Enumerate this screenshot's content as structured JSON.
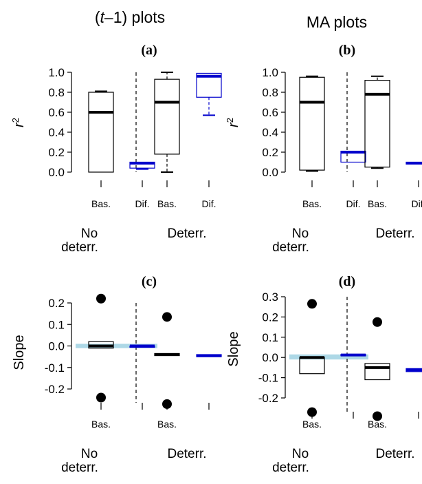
{
  "column_titles": [
    "(t–1) plots",
    "MA plots"
  ],
  "chart_data": [
    {
      "id": "a",
      "type": "box",
      "panel_label": "(a)",
      "ylabel": "r²",
      "ylim": [
        0,
        1.0
      ],
      "yticks": [
        "0.0",
        "0.2",
        "0.4",
        "0.6",
        "0.8",
        "1.0"
      ],
      "categories": [
        "Bas.",
        "Dif.",
        "Bas.",
        "Dif."
      ],
      "groups": [
        "No deterr.",
        "Deterr."
      ],
      "boxes": [
        {
          "category": "Bas.",
          "color": "#000000",
          "whisker_low": 0.0,
          "q1": 0.0,
          "median": 0.6,
          "q3": 0.8,
          "whisker_high": 0.81
        },
        {
          "category": "Dif.",
          "color": "#0000cc",
          "whisker_low": 0.03,
          "q1": 0.04,
          "median": 0.09,
          "q3": 0.1,
          "whisker_high": 0.1
        },
        {
          "category": "Bas.",
          "color": "#000000",
          "whisker_low": 0.0,
          "q1": 0.18,
          "median": 0.7,
          "q3": 0.93,
          "whisker_high": 1.0
        },
        {
          "category": "Dif.",
          "color": "#0000cc",
          "whisker_low": 0.57,
          "q1": 0.75,
          "median": 0.96,
          "q3": 0.99,
          "whisker_high": 0.99
        }
      ],
      "points": [],
      "reference_band": null
    },
    {
      "id": "b",
      "type": "box",
      "panel_label": "(b)",
      "ylabel": "r²",
      "ylim": [
        0,
        1.0
      ],
      "yticks": [
        "0.0",
        "0.2",
        "0.4",
        "0.6",
        "0.8",
        "1.0"
      ],
      "categories": [
        "Bas.",
        "Dif.",
        "Bas.",
        "Dif."
      ],
      "groups": [
        "No deterr.",
        "Deterr."
      ],
      "boxes": [
        {
          "category": "Bas.",
          "color": "#000000",
          "whisker_low": 0.01,
          "q1": 0.02,
          "median": 0.7,
          "q3": 0.95,
          "whisker_high": 0.96
        },
        {
          "category": "Dif.",
          "color": "#0000cc",
          "whisker_low": 0.1,
          "q1": 0.1,
          "median": 0.2,
          "q3": 0.21,
          "whisker_high": 0.21
        },
        {
          "category": "Bas.",
          "color": "#000000",
          "whisker_low": 0.04,
          "q1": 0.05,
          "median": 0.78,
          "q3": 0.92,
          "whisker_high": 0.96
        },
        {
          "category": "Dif.",
          "color": "#0000cc",
          "whisker_low": 0.08,
          "q1": 0.08,
          "median": 0.09,
          "q3": 0.1,
          "whisker_high": 0.1
        }
      ],
      "points": [],
      "reference_band": null
    },
    {
      "id": "c",
      "type": "box",
      "panel_label": "(c)",
      "ylabel": "Slope",
      "ylim": [
        -0.25,
        0.25
      ],
      "yticks": [
        "-0.2",
        "-0.1",
        "0.0",
        "0.1",
        "0.2"
      ],
      "categories": [
        "Bas.",
        "",
        "Bas.",
        ""
      ],
      "groups": [
        "No deterr.",
        "Deterr."
      ],
      "boxes": [
        {
          "category": "Bas.",
          "color": "#000000",
          "whisker_low": -0.01,
          "q1": -0.01,
          "median": 0.0,
          "q3": 0.02,
          "whisker_high": 0.02
        },
        {
          "category": "",
          "color": "#0000cc",
          "whisker_low": 0.0,
          "q1": 0.0,
          "median": 0.0,
          "q3": 0.0,
          "whisker_high": 0.0
        },
        {
          "category": "Bas.",
          "color": "#000000",
          "whisker_low": -0.045,
          "q1": -0.045,
          "median": -0.04,
          "q3": -0.035,
          "whisker_high": -0.035
        },
        {
          "category": "",
          "color": "#0000cc",
          "whisker_low": -0.05,
          "q1": -0.05,
          "median": -0.045,
          "q3": -0.04,
          "whisker_high": -0.04
        }
      ],
      "points": [
        {
          "category_index": 0,
          "y": 0.22
        },
        {
          "category_index": 0,
          "y": -0.24
        },
        {
          "category_index": 2,
          "y": 0.135
        },
        {
          "category_index": 2,
          "y": -0.27
        }
      ],
      "reference_band": {
        "low": -0.01,
        "high": 0.01,
        "color": "#add8e6"
      }
    },
    {
      "id": "d",
      "type": "box",
      "panel_label": "(d)",
      "ylabel": "Slope",
      "ylim": [
        -0.25,
        0.3
      ],
      "yticks": [
        "-0.2",
        "-0.1",
        "0.0",
        "0.1",
        "0.2",
        "0.3"
      ],
      "categories": [
        "Bas.",
        "",
        "Bas.",
        ""
      ],
      "groups": [
        "No deterr.",
        "Deterr."
      ],
      "boxes": [
        {
          "category": "Bas.",
          "color": "#000000",
          "whisker_low": -0.08,
          "q1": -0.08,
          "median": 0.0,
          "q3": 0.0,
          "whisker_high": 0.0
        },
        {
          "category": "",
          "color": "#0000cc",
          "whisker_low": 0.01,
          "q1": 0.01,
          "median": 0.012,
          "q3": 0.015,
          "whisker_high": 0.015
        },
        {
          "category": "Bas.",
          "color": "#000000",
          "whisker_low": -0.11,
          "q1": -0.11,
          "median": -0.05,
          "q3": -0.03,
          "whisker_high": -0.03
        },
        {
          "category": "",
          "color": "#0000cc",
          "whisker_low": -0.07,
          "q1": -0.07,
          "median": -0.062,
          "q3": -0.055,
          "whisker_high": -0.055
        }
      ],
      "points": [
        {
          "category_index": 0,
          "y": 0.265
        },
        {
          "category_index": 0,
          "y": -0.27
        },
        {
          "category_index": 2,
          "y": 0.175
        },
        {
          "category_index": 2,
          "y": -0.29
        }
      ],
      "reference_band": {
        "low": -0.01,
        "high": 0.015,
        "color": "#add8e6"
      }
    }
  ]
}
